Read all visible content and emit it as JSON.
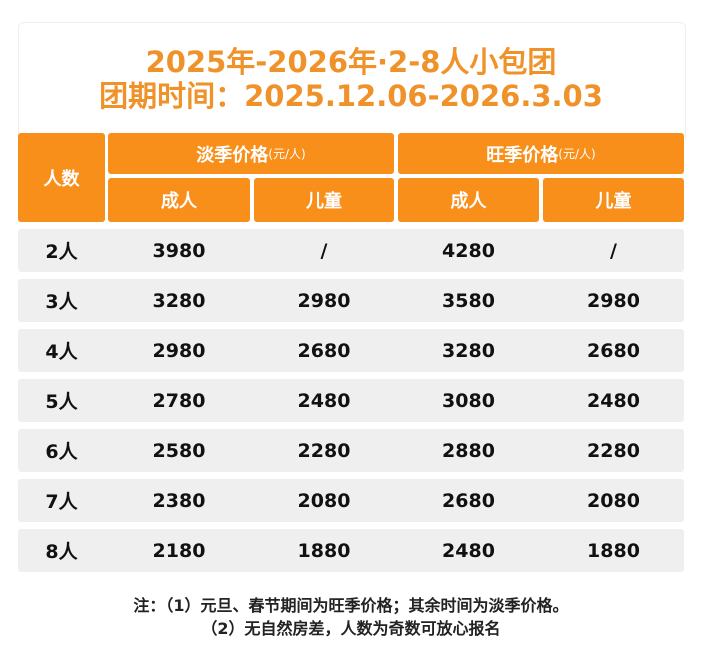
{
  "title": {
    "line1": "2025年-2026年·2-8人小包团",
    "line2": "团期时间：2025.12.06-2026.3.03"
  },
  "colors": {
    "header": "#f88f1a",
    "title": "#f0922a",
    "row": "#efefef"
  },
  "header": {
    "people": "人数",
    "off_season": "淡季价格",
    "peak_season": "旺季价格",
    "unit": "(元/人)",
    "adult": "成人",
    "child": "儿童"
  },
  "rows": [
    {
      "people": "2人",
      "off_adult": "3980",
      "off_child": "/",
      "peak_adult": "4280",
      "peak_child": "/"
    },
    {
      "people": "3人",
      "off_adult": "3280",
      "off_child": "2980",
      "peak_adult": "3580",
      "peak_child": "2980"
    },
    {
      "people": "4人",
      "off_adult": "2980",
      "off_child": "2680",
      "peak_adult": "3280",
      "peak_child": "2680"
    },
    {
      "people": "5人",
      "off_adult": "2780",
      "off_child": "2480",
      "peak_adult": "3080",
      "peak_child": "2480"
    },
    {
      "people": "6人",
      "off_adult": "2580",
      "off_child": "2280",
      "peak_adult": "2880",
      "peak_child": "2280"
    },
    {
      "people": "7人",
      "off_adult": "2380",
      "off_child": "2080",
      "peak_adult": "2680",
      "peak_child": "2080"
    },
    {
      "people": "8人",
      "off_adult": "2180",
      "off_child": "1880",
      "peak_adult": "2480",
      "peak_child": "1880"
    }
  ],
  "notes": {
    "line1": "注：（1）元旦、春节期间为旺季价格；其余时间为淡季价格。",
    "line2": "（2）无自然房差，人数为奇数可放心报名"
  }
}
